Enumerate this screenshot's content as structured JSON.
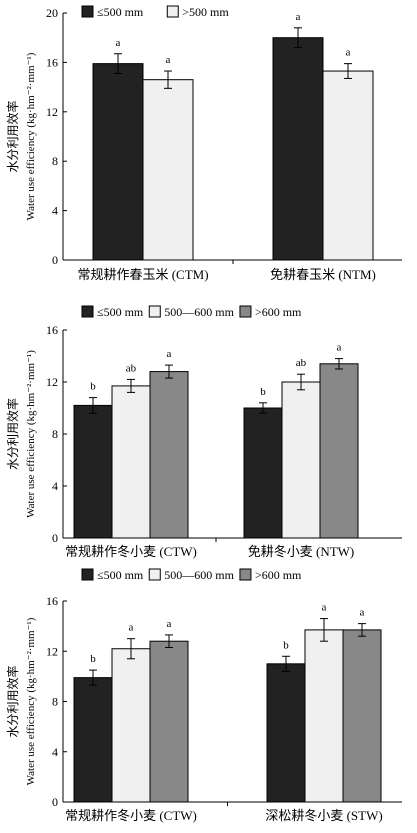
{
  "chart_data": [
    {
      "type": "bar",
      "ylabel_cn": "水分利用效率",
      "ylabel_en": "Water use efficiency (kg·hm⁻²·mm⁻¹)",
      "ylim": [
        0,
        20
      ],
      "yticks": [
        0,
        4,
        8,
        12,
        16,
        20
      ],
      "grid": false,
      "legend_position": "top-left",
      "categories": [
        "常规耕作春玉米 (CTM)",
        "免耕春玉米 (NTM)"
      ],
      "series": [
        {
          "name": "≤500 mm",
          "color": "#222222",
          "values": [
            15.9,
            18.0
          ],
          "errors": [
            0.8,
            0.8
          ],
          "sig": [
            "a",
            "a"
          ]
        },
        {
          "name": ">500 mm",
          "color": "#f0f0f0",
          "values": [
            14.6,
            15.3
          ],
          "errors": [
            0.7,
            0.6
          ],
          "sig": [
            "a",
            "a"
          ]
        }
      ]
    },
    {
      "type": "bar",
      "ylabel_cn": "水分利用效率",
      "ylabel_en": "Water use efficiency (kg·hm⁻²·mm⁻¹)",
      "ylim": [
        0,
        16
      ],
      "yticks": [
        0,
        4,
        8,
        12,
        16
      ],
      "grid": false,
      "legend_position": "top",
      "categories": [
        "常规耕作冬小麦 (CTW)",
        "免耕冬小麦 (NTW)"
      ],
      "series": [
        {
          "name": "≤500 mm",
          "color": "#222222",
          "values": [
            10.2,
            10.0
          ],
          "errors": [
            0.6,
            0.4
          ],
          "sig": [
            "b",
            "b"
          ]
        },
        {
          "name": "500—600 mm",
          "color": "#f0f0f0",
          "values": [
            11.7,
            12.0
          ],
          "errors": [
            0.5,
            0.6
          ],
          "sig": [
            "ab",
            "ab"
          ]
        },
        {
          "name": ">600 mm",
          "color": "#888888",
          "values": [
            12.8,
            13.4
          ],
          "errors": [
            0.5,
            0.4
          ],
          "sig": [
            "a",
            "a"
          ]
        }
      ]
    },
    {
      "type": "bar",
      "ylabel_cn": "水分利用效率",
      "ylabel_en": "Water use efficiency (kg·hm⁻²·mm⁻¹)",
      "ylim": [
        0,
        16
      ],
      "yticks": [
        0,
        4,
        8,
        12,
        16
      ],
      "grid": false,
      "legend_position": "top",
      "categories": [
        "常规耕作冬小麦 (CTW)",
        "深松耕冬小麦 (STW)"
      ],
      "series": [
        {
          "name": "≤500 mm",
          "color": "#222222",
          "values": [
            9.9,
            11.0
          ],
          "errors": [
            0.6,
            0.6
          ],
          "sig": [
            "b",
            "b"
          ]
        },
        {
          "name": "500—600 mm",
          "color": "#f0f0f0",
          "values": [
            12.2,
            13.7
          ],
          "errors": [
            0.8,
            0.9
          ],
          "sig": [
            "a",
            "a"
          ]
        },
        {
          "name": ">600 mm",
          "color": "#888888",
          "values": [
            12.8,
            13.7
          ],
          "errors": [
            0.5,
            0.5
          ],
          "sig": [
            "a",
            "a"
          ]
        }
      ]
    }
  ]
}
